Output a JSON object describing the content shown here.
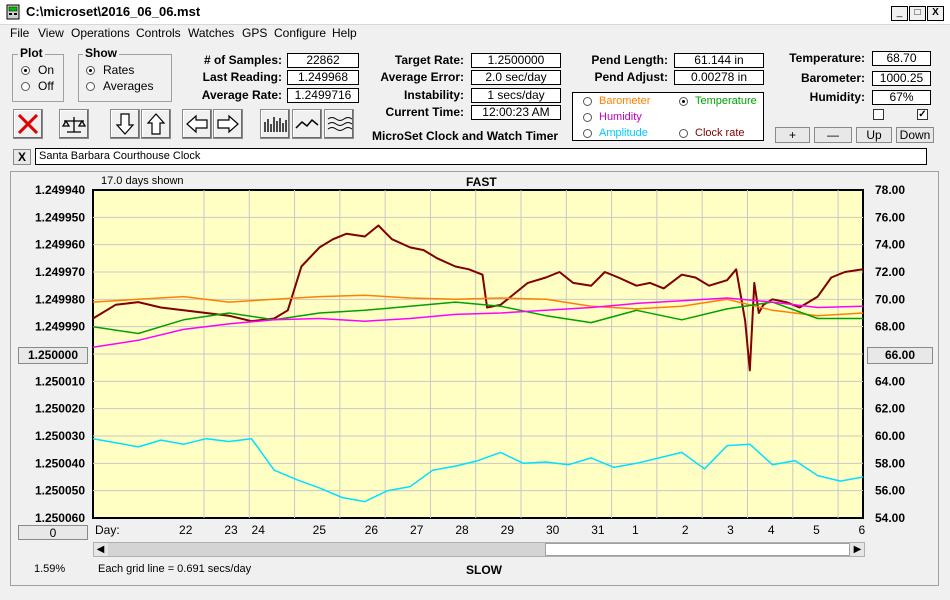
{
  "window": {
    "title": "C:\\microset\\2016_06_06.mst",
    "buttons": [
      "_",
      "□",
      "X"
    ]
  },
  "menu": [
    "File",
    "View",
    "Operations",
    "Controls",
    "Watches",
    "GPS",
    "Configure",
    "Help"
  ],
  "plot_group": {
    "title": "Plot",
    "options": [
      {
        "label": "On",
        "selected": true
      },
      {
        "label": "Off",
        "selected": false
      }
    ]
  },
  "show_group": {
    "title": "Show",
    "options": [
      {
        "label": "Rates",
        "selected": true
      },
      {
        "label": "Averages",
        "selected": false
      }
    ]
  },
  "stats": {
    "samples_label": "# of Samples:",
    "samples": "22862",
    "last_label": "Last Reading:",
    "last": "1.249968",
    "avg_label": "Average Rate:",
    "avg": "1.2499716"
  },
  "target": {
    "rate_label": "Target Rate:",
    "rate": "1.2500000",
    "error_label": "Average Error:",
    "error": "2.0 sec/day",
    "instability_label": "Instability:",
    "instability": "1 secs/day",
    "time_label": "Current Time:",
    "time": "12:00:23 AM",
    "app_title": "MicroSet Clock and Watch Timer"
  },
  "pend": {
    "length_label": "Pend Length:",
    "length": "61.144 in",
    "adjust_label": "Pend Adjust:",
    "adjust": "0.00278 in"
  },
  "env": {
    "temp_label": "Temperature:",
    "temp": "68.70",
    "baro_label": "Barometer:",
    "baro": "1000.25",
    "humid_label": "Humidity:",
    "humid": "67%"
  },
  "checkboxes": [
    false,
    true
  ],
  "aux_options": [
    {
      "label": "Barometer",
      "color": "#ff8000",
      "selected": false
    },
    {
      "label": "Temperature",
      "color": "#00a000",
      "selected": true
    },
    {
      "label": "Humidity",
      "color": "#c000c0",
      "selected": false
    },
    {
      "label": "Clock rate",
      "color": "#800000",
      "selected": false
    },
    {
      "label": "Amplitude",
      "color": "#00c8ff",
      "selected": false
    }
  ],
  "aux_buttons": [
    "+",
    "—",
    "Up",
    "Down"
  ],
  "clock_name": "Santa Barbara Courthouse Clock",
  "close_x": "X",
  "chart_header": {
    "days_shown": "17.0 days shown",
    "top": "FAST",
    "bottom": "SLOW",
    "grid": "Each grid line = 0.691 secs/day",
    "pct": "1.59%"
  },
  "left_scale_btn": "1.250000",
  "right_scale_btn": "66.00",
  "zero_btn": "0",
  "scroll": {
    "left": "◀",
    "right": "▶"
  },
  "chart_data": {
    "type": "line",
    "x_label": "Day:",
    "x_ticks": [
      "22",
      "23",
      "24",
      "25",
      "26",
      "27",
      "28",
      "29",
      "30",
      "31",
      "1",
      "2",
      "3",
      "4",
      "5",
      "6"
    ],
    "y_left": {
      "ticks": [
        "1.249940",
        "1.249950",
        "1.249960",
        "1.249970",
        "1.249980",
        "1.249990",
        "1.250000",
        "1.250010",
        "1.250020",
        "1.250030",
        "1.250040",
        "1.250050",
        "1.250060"
      ],
      "range": [
        1.24994,
        1.25006
      ],
      "inverted": true
    },
    "y_right": {
      "ticks": [
        "78.00",
        "76.00",
        "74.00",
        "72.00",
        "70.00",
        "68.00",
        "66.00",
        "64.00",
        "62.00",
        "60.00",
        "58.00",
        "56.00",
        "54.00"
      ],
      "range": [
        54,
        78
      ]
    },
    "x_range": [
      20.0,
      37.0
    ],
    "series": [
      {
        "name": "Clock rate",
        "color": "#800000",
        "width": 2,
        "x": [
          20.0,
          20.5,
          21.0,
          21.5,
          22.0,
          22.5,
          23.0,
          23.5,
          24.0,
          24.3,
          24.6,
          25.0,
          25.3,
          25.6,
          26.0,
          26.3,
          26.6,
          27.0,
          27.3,
          27.6,
          28.0,
          28.3,
          28.6,
          28.7,
          29.0,
          29.3,
          29.6,
          30.0,
          30.3,
          30.6,
          31.0,
          31.3,
          31.6,
          32.0,
          32.3,
          32.6,
          33.0,
          33.3,
          33.6,
          34.0,
          34.2,
          34.4,
          34.5,
          34.6,
          34.7,
          34.8,
          35.0,
          35.3,
          35.6,
          36.0,
          36.3,
          36.6,
          37.0
        ],
        "y": [
          1.249987,
          1.249982,
          1.249981,
          1.249983,
          1.249984,
          1.249985,
          1.249986,
          1.249988,
          1.249987,
          1.249984,
          1.249968,
          1.249961,
          1.249958,
          1.249956,
          1.249957,
          1.249953,
          1.249958,
          1.249961,
          1.249962,
          1.249965,
          1.249968,
          1.249969,
          1.249971,
          1.249983,
          1.249982,
          1.249978,
          1.249974,
          1.249972,
          1.24997,
          1.249974,
          1.249975,
          1.24997,
          1.249972,
          1.249975,
          1.249974,
          1.249976,
          1.249971,
          1.249972,
          1.249975,
          1.249973,
          1.249969,
          1.249988,
          1.250006,
          1.249974,
          1.249985,
          1.249982,
          1.24998,
          1.249981,
          1.249983,
          1.249979,
          1.249972,
          1.24997,
          1.249969
        ]
      },
      {
        "name": "Barometer",
        "color": "#ff8000",
        "width": 1.5,
        "x": [
          20.0,
          21.0,
          22.0,
          23.0,
          24.0,
          25.0,
          26.0,
          27.0,
          28.0,
          29.0,
          30.0,
          31.0,
          32.0,
          33.0,
          34.0,
          35.0,
          36.0,
          37.0
        ],
        "y": [
          69.8,
          70.0,
          70.2,
          69.8,
          70.0,
          70.2,
          70.3,
          70.1,
          70.0,
          70.1,
          70.0,
          69.5,
          69.3,
          69.5,
          70.0,
          69.2,
          68.8,
          69.0
        ]
      },
      {
        "name": "Temperature",
        "color": "#00a000",
        "width": 1.5,
        "x": [
          20.0,
          21.0,
          22.0,
          23.0,
          24.0,
          25.0,
          26.0,
          27.0,
          28.0,
          29.0,
          30.0,
          31.0,
          32.0,
          33.0,
          34.0,
          35.0,
          36.0,
          37.0
        ],
        "y": [
          68.0,
          67.5,
          68.5,
          69.0,
          68.5,
          69.0,
          69.2,
          69.5,
          69.8,
          69.5,
          68.8,
          68.3,
          69.2,
          68.5,
          69.3,
          69.8,
          68.6,
          68.6
        ]
      },
      {
        "name": "Humidity",
        "color": "#ff00ff",
        "width": 1.5,
        "x": [
          20.0,
          21.0,
          22.0,
          23.0,
          24.0,
          25.0,
          26.0,
          27.0,
          28.0,
          29.0,
          30.0,
          31.0,
          32.0,
          33.0,
          34.0,
          35.0,
          36.0,
          37.0
        ],
        "y": [
          66.5,
          67.0,
          67.8,
          68.2,
          68.5,
          68.6,
          68.4,
          68.6,
          68.9,
          69.0,
          69.2,
          69.4,
          69.7,
          69.9,
          70.1,
          69.8,
          69.4,
          69.5
        ]
      },
      {
        "name": "Amplitude",
        "color": "#00e0ff",
        "width": 1.5,
        "x": [
          20.0,
          20.5,
          21.0,
          21.5,
          22.0,
          22.5,
          23.0,
          23.5,
          24.0,
          24.5,
          25.0,
          25.5,
          26.0,
          26.5,
          27.0,
          27.5,
          28.0,
          28.5,
          29.0,
          29.5,
          30.0,
          30.5,
          31.0,
          31.5,
          32.0,
          32.5,
          33.0,
          33.5,
          34.0,
          34.5,
          35.0,
          35.5,
          36.0,
          36.5,
          37.0
        ],
        "y": [
          59.8,
          59.5,
          59.2,
          59.7,
          59.4,
          59.8,
          59.6,
          59.8,
          57.5,
          56.8,
          56.2,
          55.5,
          55.2,
          56.0,
          56.3,
          57.5,
          57.8,
          58.2,
          58.8,
          58.0,
          58.1,
          57.9,
          58.4,
          57.7,
          58.0,
          58.4,
          58.8,
          57.6,
          59.3,
          59.4,
          57.9,
          58.2,
          57.1,
          56.7,
          57.0
        ]
      }
    ]
  }
}
